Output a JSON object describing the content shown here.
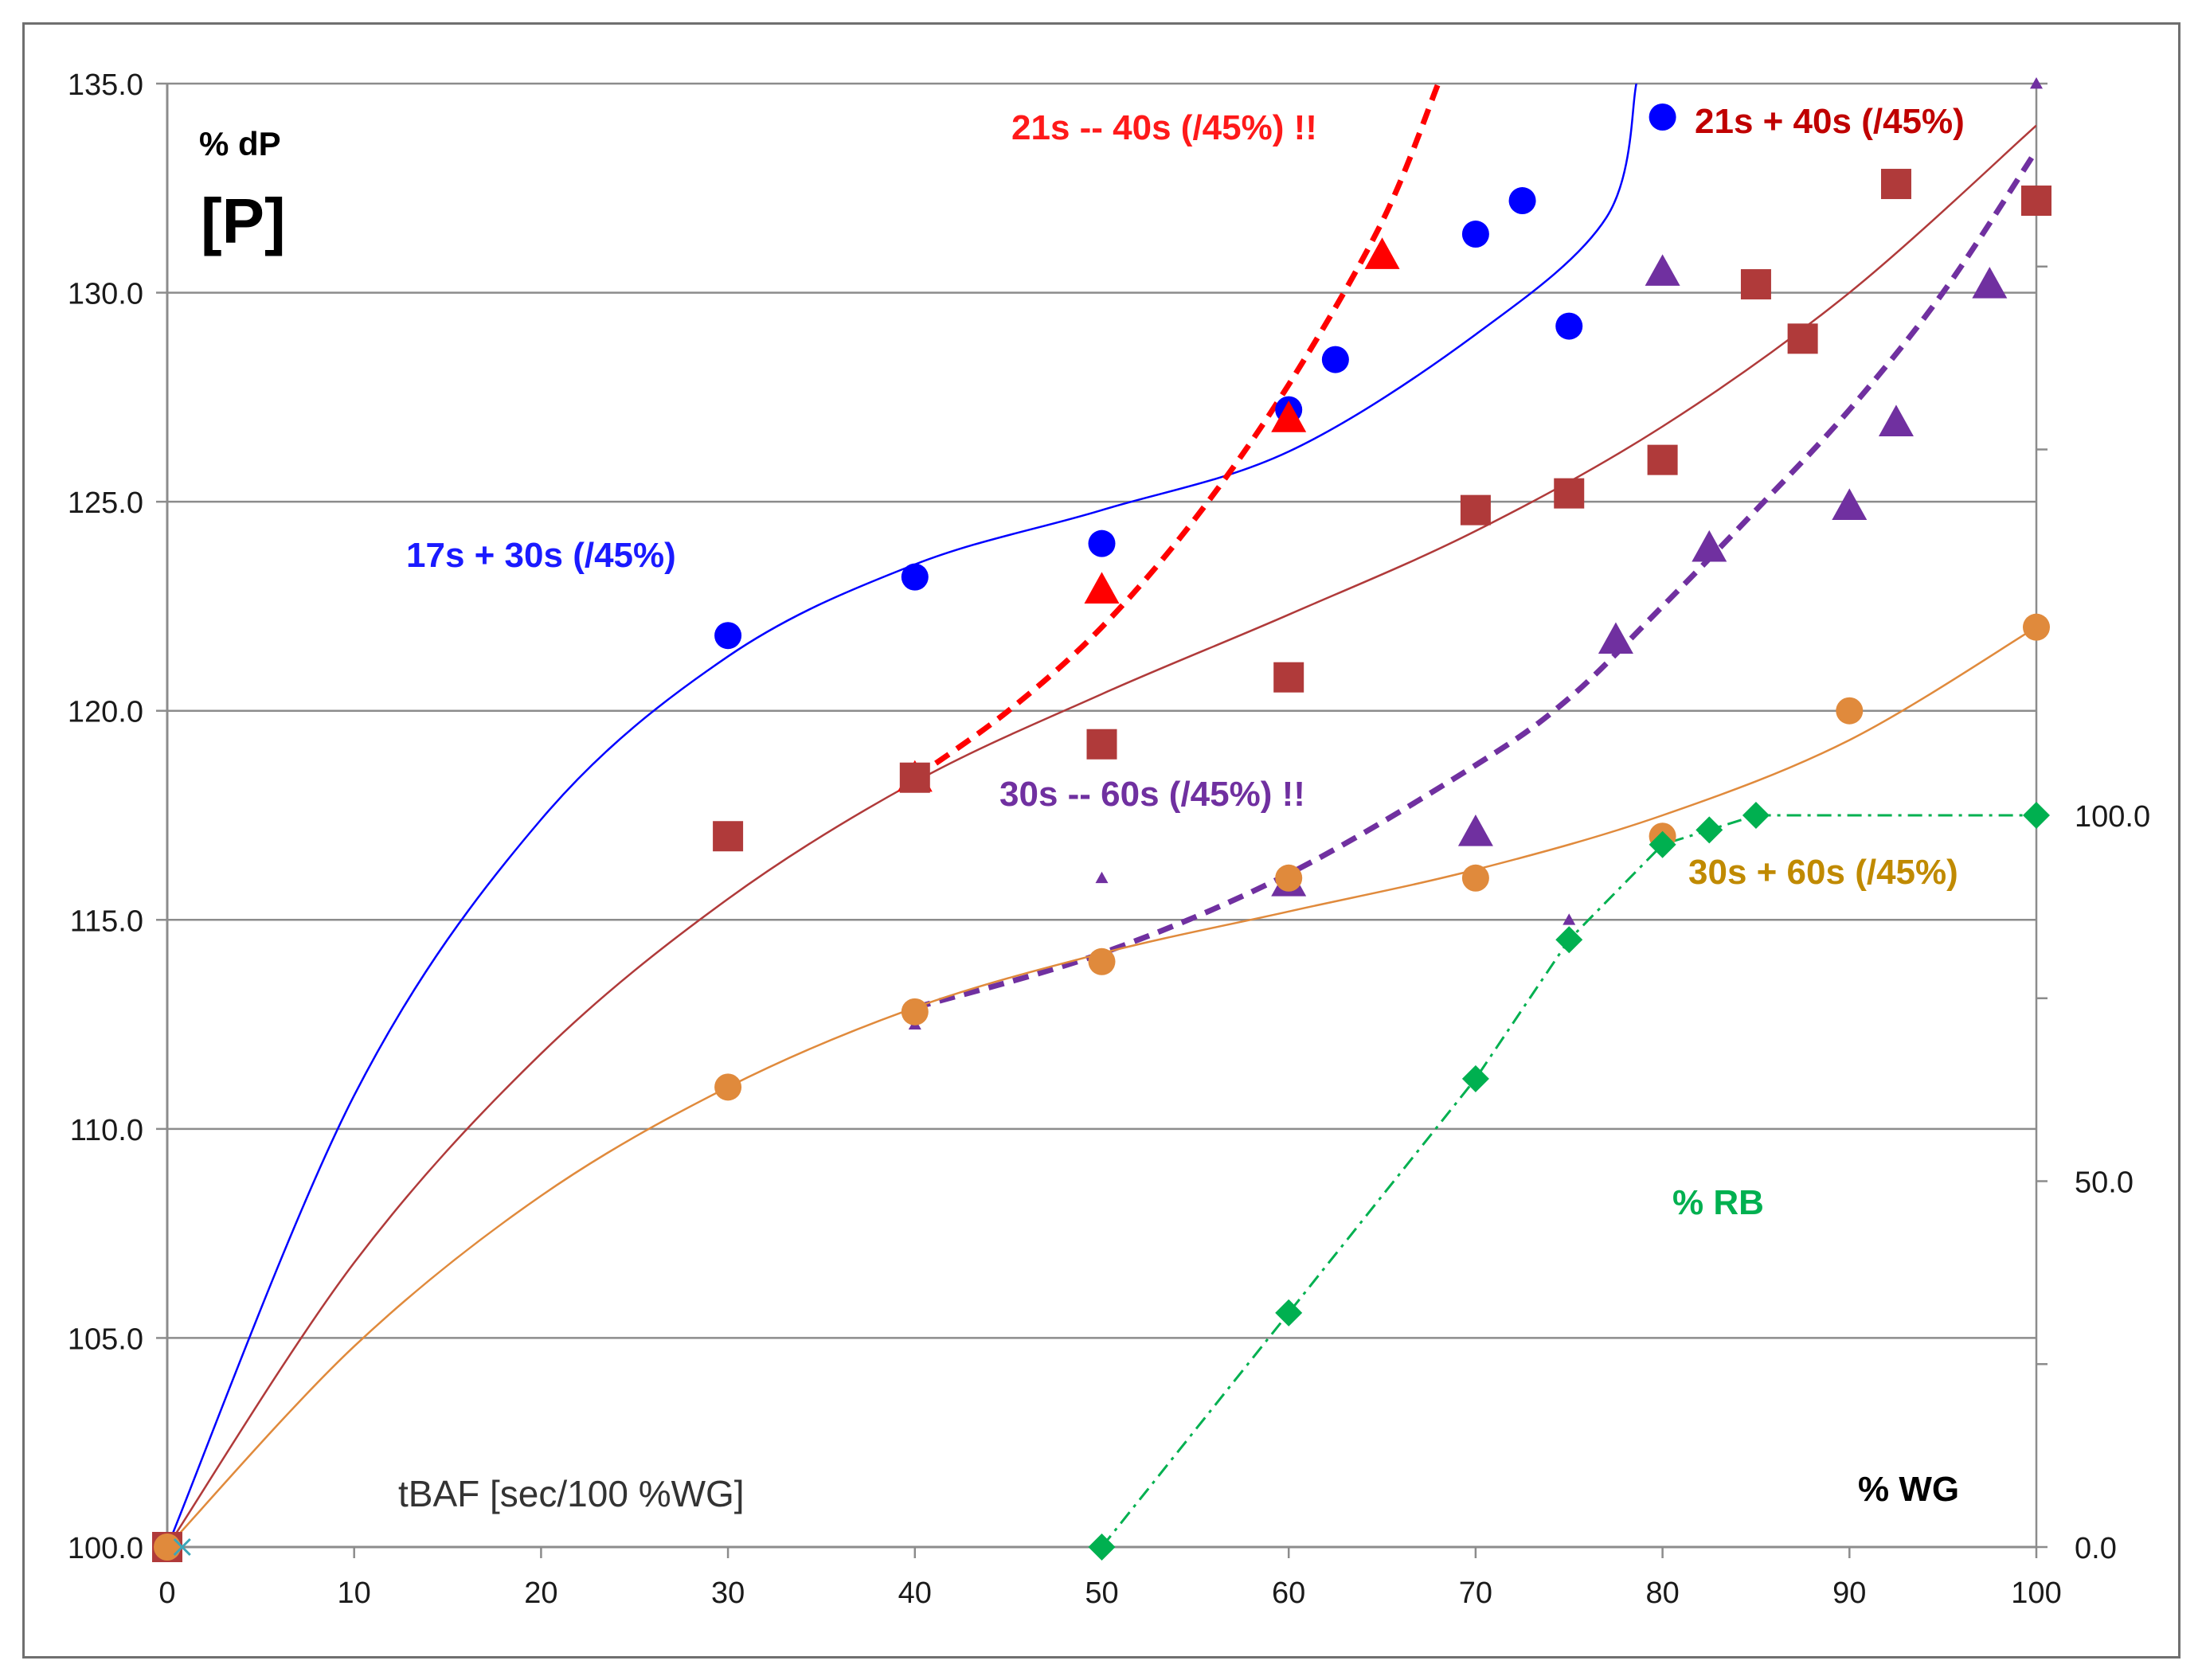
{
  "chart_data": {
    "type": "scatter",
    "ylabel": "% dP",
    "ylabel_unit": "[P]",
    "xlabel": "% WG",
    "x_annotation": "tBAF [sec/100 %WG]",
    "xlim": [
      0,
      100
    ],
    "ylim": [
      100,
      135
    ],
    "y2lim": [
      0,
      200
    ],
    "x_ticks": [
      "0",
      "10",
      "20",
      "30",
      "40",
      "50",
      "60",
      "70",
      "80",
      "90",
      "100"
    ],
    "y_ticks": [
      "100.0",
      "105.0",
      "110.0",
      "115.0",
      "120.0",
      "125.0",
      "130.0",
      "135.0"
    ],
    "y2_ticks": [
      "0.0",
      "50.0",
      "100.0"
    ],
    "grid": true,
    "series": [
      {
        "name": "17s + 30s (/45%)",
        "label": "17s + 30s (/45%)",
        "color": "#0000ff",
        "marker": "circle",
        "points": [
          [
            0,
            100.0
          ],
          [
            30,
            121.8
          ],
          [
            40,
            123.2
          ],
          [
            50,
            124.0
          ],
          [
            60,
            127.2
          ],
          [
            62.5,
            128.4
          ],
          [
            70,
            131.4
          ],
          [
            72.5,
            132.2
          ],
          [
            75,
            129.2
          ],
          [
            80,
            134.2
          ]
        ],
        "trend": [
          [
            0,
            100.0
          ],
          [
            10,
            110.8
          ],
          [
            20,
            117.4
          ],
          [
            30,
            121.3
          ],
          [
            40,
            123.5
          ],
          [
            50,
            124.8
          ],
          [
            60,
            126.2
          ],
          [
            70,
            129.0
          ],
          [
            77,
            131.8
          ],
          [
            78.6,
            135.0
          ]
        ],
        "trend_style": "solid"
      },
      {
        "name": "21s -- 40s (/45%) !!",
        "label": "21s -- 40s (/45%) !!",
        "color": "#ff0000",
        "marker": "triangle",
        "points": [
          [
            40,
            118.4
          ],
          [
            50,
            122.9
          ],
          [
            60,
            127.0
          ],
          [
            65,
            130.9
          ]
        ],
        "trend": [
          [
            40,
            118.4
          ],
          [
            45,
            120.0
          ],
          [
            50,
            122.0
          ],
          [
            55,
            124.6
          ],
          [
            60,
            127.8
          ],
          [
            65,
            131.7
          ],
          [
            68,
            135.0
          ]
        ],
        "trend_style": "dashed"
      },
      {
        "name": "21s + 40s (/45%)",
        "label": "21s + 40s (/45%)",
        "color": "#b03a3a",
        "marker": "square",
        "points": [
          [
            0,
            100.0
          ],
          [
            30,
            117.0
          ],
          [
            40,
            118.4
          ],
          [
            50,
            119.2
          ],
          [
            60,
            120.8
          ],
          [
            70,
            124.8
          ],
          [
            75,
            125.2
          ],
          [
            80,
            126.0
          ],
          [
            85,
            130.2
          ],
          [
            87.5,
            128.9
          ],
          [
            92.5,
            132.6
          ],
          [
            100,
            132.2
          ]
        ],
        "trend": [
          [
            0,
            100.0
          ],
          [
            10,
            106.8
          ],
          [
            20,
            111.8
          ],
          [
            30,
            115.5
          ],
          [
            40,
            118.3
          ],
          [
            50,
            120.4
          ],
          [
            60,
            122.3
          ],
          [
            70,
            124.3
          ],
          [
            80,
            126.8
          ],
          [
            90,
            130.0
          ],
          [
            100,
            134.0
          ]
        ],
        "trend_style": "solid"
      },
      {
        "name": "30s -- 60s (/45%) !!",
        "label": "30s -- 60s (/45%) !!",
        "color": "#7030a0",
        "marker": "triangle",
        "points": [
          [
            40,
            112.5
          ],
          [
            50,
            116.0
          ],
          [
            60,
            115.9
          ],
          [
            70,
            117.1
          ],
          [
            75,
            115.0
          ],
          [
            77.5,
            121.7
          ],
          [
            80,
            130.5
          ],
          [
            82.5,
            123.9
          ],
          [
            90,
            124.9
          ],
          [
            92.5,
            126.9
          ],
          [
            97.5,
            130.2
          ],
          [
            100,
            135.0
          ]
        ],
        "trend": [
          [
            40,
            112.9
          ],
          [
            50,
            114.2
          ],
          [
            60,
            116.1
          ],
          [
            70,
            118.7
          ],
          [
            75,
            120.3
          ],
          [
            80,
            122.5
          ],
          [
            85,
            124.8
          ],
          [
            90,
            127.2
          ],
          [
            95,
            130.0
          ],
          [
            100,
            133.4
          ]
        ],
        "trend_style": "dashed"
      },
      {
        "name": "30s + 60s (/45%)",
        "label": "30s + 60s (/45%)",
        "color": "#e08a3c",
        "marker": "circle",
        "points": [
          [
            0,
            100.0
          ],
          [
            30,
            111.0
          ],
          [
            40,
            112.8
          ],
          [
            50,
            114.0
          ],
          [
            60,
            116.0
          ],
          [
            70,
            116.0
          ],
          [
            80,
            117.0
          ],
          [
            90,
            120.0
          ],
          [
            100,
            122.0
          ]
        ],
        "trend": [
          [
            0,
            100.0
          ],
          [
            10,
            104.8
          ],
          [
            20,
            108.4
          ],
          [
            30,
            111.0
          ],
          [
            40,
            112.9
          ],
          [
            50,
            114.2
          ],
          [
            60,
            115.2
          ],
          [
            70,
            116.2
          ],
          [
            80,
            117.5
          ],
          [
            90,
            119.3
          ],
          [
            100,
            122.0
          ]
        ],
        "trend_style": "solid"
      },
      {
        "name": "% RB",
        "label": "% RB",
        "color": "#00b050",
        "marker": "diamond",
        "axis": "right",
        "points": [
          [
            50,
            0.0
          ],
          [
            60,
            32.0
          ],
          [
            70,
            64.0
          ],
          [
            75,
            83.0
          ],
          [
            80,
            96.0
          ],
          [
            82.5,
            98.0
          ],
          [
            85,
            100.0
          ],
          [
            100,
            100.0
          ]
        ],
        "trend_style": "dashdot"
      }
    ]
  }
}
